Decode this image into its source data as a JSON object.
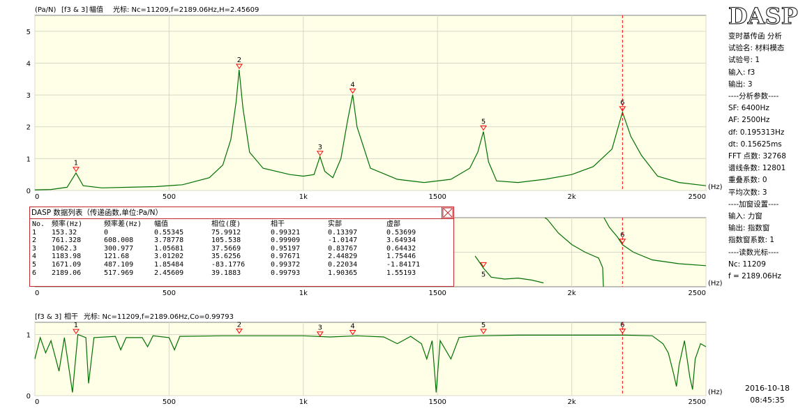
{
  "panel1": {
    "header_unit": "(Pa/N)",
    "header_channel": "[f3 & 3]",
    "header_kind": "幅值",
    "header_cursor": "光标: Nc=11209,f=2189.06Hz,H=2.45609"
  },
  "panel3": {
    "header_channel": "[f3 & 3]",
    "header_kind": "相干",
    "header_cursor": "光标: Nc=11209,f=2189.06Hz,Co=0.99793"
  },
  "axes": {
    "x_ticks": [
      "0",
      "500",
      "1k",
      "1500",
      "2k",
      "2500"
    ],
    "x_unit": "(Hz)",
    "amp_y_ticks": [
      "0",
      "1",
      "2",
      "3",
      "4",
      "5"
    ],
    "coh_y_ticks": [
      "0",
      "1"
    ]
  },
  "cursor_line_color": "#ff0000",
  "trace_color": "#007000",
  "marker_color": "#ff0000",
  "table": {
    "title": "DASP 数据列表（传递函数,单位:Pa/N）",
    "columns": [
      "No.",
      "频率(Hz)",
      "频率差(Hz)",
      "幅值",
      "相位(度)",
      "相干",
      "实部",
      "虚部"
    ],
    "rows": [
      [
        "1",
        "153.32",
        "0",
        "0.55345",
        "75.9912",
        "0.99321",
        "0.13397",
        "0.53699"
      ],
      [
        "2",
        "761.328",
        "608.008",
        "3.78778",
        "105.538",
        "0.99909",
        "-1.0147",
        "3.64934"
      ],
      [
        "3",
        "1062.3",
        "300.977",
        "1.05681",
        "37.5669",
        "0.95197",
        "0.83767",
        "0.64432"
      ],
      [
        "4",
        "1183.98",
        "121.68",
        "3.01202",
        "35.6256",
        "0.97671",
        "2.44829",
        "1.75446"
      ],
      [
        "5",
        "1671.09",
        "487.109",
        "1.85484",
        "-83.1776",
        "0.99372",
        "0.22034",
        "-1.84171"
      ],
      [
        "6",
        "2189.06",
        "517.969",
        "2.45609",
        "39.1883",
        "0.99793",
        "1.90365",
        "1.55193"
      ]
    ]
  },
  "info": {
    "logo": "DASP",
    "lines": [
      "变时基传函 分析",
      "试验名: 材料模态",
      "试验号: 1",
      "输入: f3",
      "输出: 3",
      "----分析参数----",
      "SF: 6400Hz",
      "AF: 2500Hz",
      "df: 0.195313Hz",
      "dt: 0.15625ms",
      "FFT 点数: 32768",
      "谱线条数: 12801",
      "重叠系数: 0",
      "平均次数: 3",
      "----加窗设置----",
      "输入: 力窗",
      "输出: 指数窗",
      "指数窗系数: 1",
      "----读数光标----",
      "Nc: 11209",
      "f = 2189.06Hz"
    ]
  },
  "datetime": {
    "date": "2016-10-18",
    "time": "08:45:35"
  },
  "chart_data": [
    {
      "type": "line",
      "xlim": [
        0,
        2500
      ],
      "ylim": [
        0,
        5.5
      ],
      "ylabel": "(Pa/N)",
      "xlabel": "(Hz)",
      "grid": true,
      "cursor_x": 2189.06,
      "peaks": [
        {
          "label": "1",
          "x": 153.32,
          "y": 0.55345
        },
        {
          "label": "2",
          "x": 761.328,
          "y": 3.78778
        },
        {
          "label": "3",
          "x": 1062.3,
          "y": 1.05681
        },
        {
          "label": "4",
          "x": 1183.98,
          "y": 3.01202
        },
        {
          "label": "5",
          "x": 1671.09,
          "y": 1.85484
        },
        {
          "label": "6",
          "x": 2189.06,
          "y": 2.45609
        }
      ],
      "series": [
        {
          "values": [
            [
              0,
              0.02
            ],
            [
              60,
              0.03
            ],
            [
              120,
              0.1
            ],
            [
              153,
              0.55
            ],
            [
              180,
              0.15
            ],
            [
              250,
              0.08
            ],
            [
              350,
              0.1
            ],
            [
              450,
              0.12
            ],
            [
              550,
              0.18
            ],
            [
              650,
              0.4
            ],
            [
              700,
              0.8
            ],
            [
              730,
              1.6
            ],
            [
              750,
              2.8
            ],
            [
              761,
              3.79
            ],
            [
              775,
              2.6
            ],
            [
              800,
              1.2
            ],
            [
              850,
              0.7
            ],
            [
              950,
              0.5
            ],
            [
              1000,
              0.45
            ],
            [
              1040,
              0.5
            ],
            [
              1062,
              1.06
            ],
            [
              1080,
              0.6
            ],
            [
              1110,
              0.4
            ],
            [
              1140,
              1.0
            ],
            [
              1165,
              2.2
            ],
            [
              1184,
              3.01
            ],
            [
              1200,
              2.0
            ],
            [
              1250,
              0.7
            ],
            [
              1350,
              0.35
            ],
            [
              1450,
              0.25
            ],
            [
              1550,
              0.35
            ],
            [
              1620,
              0.7
            ],
            [
              1650,
              1.2
            ],
            [
              1671,
              1.85
            ],
            [
              1690,
              0.9
            ],
            [
              1720,
              0.3
            ],
            [
              1800,
              0.25
            ],
            [
              1900,
              0.35
            ],
            [
              2000,
              0.5
            ],
            [
              2080,
              0.75
            ],
            [
              2150,
              1.3
            ],
            [
              2189,
              2.46
            ],
            [
              2220,
              1.7
            ],
            [
              2260,
              1.1
            ],
            [
              2320,
              0.45
            ],
            [
              2400,
              0.25
            ],
            [
              2500,
              0.15
            ]
          ]
        }
      ]
    },
    {
      "type": "line",
      "xlim": [
        0,
        2500
      ],
      "ylabel": "相位(度)",
      "xlabel": "(Hz)",
      "grid": true,
      "cursor_x": 2189.06,
      "peaks": [
        {
          "label": "5",
          "x": 1671.09,
          "y": -83.1776
        },
        {
          "label": "6",
          "x": 2189.06,
          "y": 39.1883
        }
      ],
      "series": [
        {
          "values": [
            [
              1640,
              -20
            ],
            [
              1660,
              -60
            ],
            [
              1671,
              -83
            ],
            [
              1700,
              -130
            ],
            [
              1750,
              -140
            ],
            [
              1800,
              -135
            ],
            [
              1850,
              -145
            ],
            [
              1895,
              -160
            ],
            [
              1900,
              180
            ],
            [
              1910,
              170
            ],
            [
              1950,
              100
            ],
            [
              2000,
              40
            ],
            [
              2050,
              0
            ],
            [
              2100,
              -30
            ],
            [
              2115,
              -80
            ],
            [
              2118,
              -180
            ],
            [
              2120,
              180
            ],
            [
              2140,
              130
            ],
            [
              2170,
              80
            ],
            [
              2189,
              39
            ],
            [
              2230,
              0
            ],
            [
              2300,
              -40
            ],
            [
              2400,
              -60
            ],
            [
              2500,
              -70
            ]
          ]
        }
      ]
    },
    {
      "type": "line",
      "xlim": [
        0,
        2500
      ],
      "ylim": [
        0,
        1.2
      ],
      "ylabel": "相干",
      "xlabel": "(Hz)",
      "grid": true,
      "cursor_x": 2189.06,
      "peaks": [
        {
          "label": "1",
          "x": 153.32,
          "y": 0.99321
        },
        {
          "label": "2",
          "x": 761.328,
          "y": 0.99909
        },
        {
          "label": "3",
          "x": 1062.3,
          "y": 0.95197
        },
        {
          "label": "4",
          "x": 1183.98,
          "y": 0.97671
        },
        {
          "label": "5",
          "x": 1671.09,
          "y": 0.99372
        },
        {
          "label": "6",
          "x": 2189.06,
          "y": 0.99793
        }
      ],
      "series": [
        {
          "values": [
            [
              0,
              0.6
            ],
            [
              20,
              0.95
            ],
            [
              40,
              0.7
            ],
            [
              60,
              0.9
            ],
            [
              90,
              0.4
            ],
            [
              110,
              0.95
            ],
            [
              140,
              0.05
            ],
            [
              160,
              1.0
            ],
            [
              190,
              0.95
            ],
            [
              200,
              0.2
            ],
            [
              220,
              0.95
            ],
            [
              300,
              0.97
            ],
            [
              320,
              0.75
            ],
            [
              340,
              0.95
            ],
            [
              400,
              0.95
            ],
            [
              420,
              0.8
            ],
            [
              440,
              0.98
            ],
            [
              500,
              0.95
            ],
            [
              520,
              0.75
            ],
            [
              540,
              0.97
            ],
            [
              700,
              0.98
            ],
            [
              1000,
              0.98
            ],
            [
              1100,
              0.96
            ],
            [
              1200,
              0.98
            ],
            [
              1300,
              0.96
            ],
            [
              1350,
              0.85
            ],
            [
              1400,
              0.97
            ],
            [
              1440,
              0.85
            ],
            [
              1460,
              0.6
            ],
            [
              1480,
              0.9
            ],
            [
              1495,
              0.05
            ],
            [
              1510,
              0.9
            ],
            [
              1550,
              0.6
            ],
            [
              1580,
              0.95
            ],
            [
              1620,
              0.97
            ],
            [
              1660,
              0.98
            ],
            [
              1800,
              0.99
            ],
            [
              2000,
              0.99
            ],
            [
              2200,
              0.99
            ],
            [
              2300,
              0.98
            ],
            [
              2340,
              0.85
            ],
            [
              2360,
              0.7
            ],
            [
              2380,
              0.35
            ],
            [
              2390,
              0.15
            ],
            [
              2400,
              0.5
            ],
            [
              2420,
              0.9
            ],
            [
              2440,
              0.3
            ],
            [
              2450,
              0.1
            ],
            [
              2460,
              0.6
            ],
            [
              2480,
              0.85
            ],
            [
              2500,
              0.8
            ]
          ]
        }
      ]
    }
  ]
}
